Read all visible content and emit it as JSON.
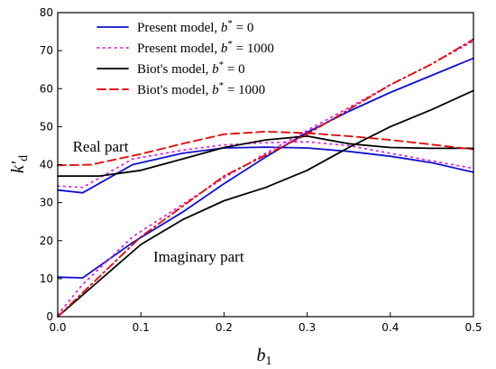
{
  "chart_data": {
    "type": "line",
    "xlabel": {
      "main": "b",
      "sub": "1"
    },
    "ylabel": {
      "main": "k′",
      "sub": "d"
    },
    "xlim": [
      0,
      0.5
    ],
    "ylim": [
      0,
      80
    ],
    "xticks": [
      0,
      0.1,
      0.2,
      0.3,
      0.4,
      0.5
    ],
    "xtick_labels": [
      "0.0",
      "0.1",
      "0.2",
      "0.3",
      "0.4",
      "0.5"
    ],
    "yticks": [
      0,
      10,
      20,
      30,
      40,
      50,
      60,
      70,
      80
    ],
    "ytick_labels": [
      "0",
      "10",
      "20",
      "30",
      "40",
      "50",
      "60",
      "70",
      "80"
    ],
    "legend_position": "top-left",
    "annotations": [
      {
        "text": "Real part",
        "x": 0.018,
        "y": 43.5
      },
      {
        "text": "Imaginary part",
        "x": 0.115,
        "y": 14.5
      }
    ],
    "series": [
      {
        "legend": {
          "prefix": "Present model, ",
          "var": "b",
          "sup": "*",
          "suffix": " = 0"
        },
        "color": "#1010d0",
        "dash": "",
        "width": 1.8,
        "part": "real",
        "x": [
          0,
          0.03,
          0.09,
          0.15,
          0.2,
          0.25,
          0.3,
          0.35,
          0.4,
          0.45,
          0.5
        ],
        "y": [
          33.3,
          32.6,
          40.0,
          43.0,
          44.4,
          44.6,
          44.4,
          43.5,
          42.2,
          40.5,
          38.0
        ]
      },
      {
        "legend": {
          "prefix": "Present model, ",
          "var": "b",
          "sup": "*",
          "suffix": " = 0"
        },
        "color": "#1010d0",
        "dash": "",
        "width": 1.8,
        "part": "imaginary",
        "x": [
          0,
          0.03,
          0.09,
          0.15,
          0.2,
          0.25,
          0.3,
          0.35,
          0.4,
          0.45,
          0.5
        ],
        "y": [
          10.4,
          10.2,
          19.5,
          27.5,
          35.0,
          42.0,
          48.5,
          54.0,
          59.0,
          63.5,
          68.0
        ]
      },
      {
        "legend": {
          "prefix": "Present model, ",
          "var": "b",
          "sup": "*",
          "suffix": " = 1000"
        },
        "color": "#e020e0",
        "dash": "1.5 5",
        "width": 1.8,
        "part": "real",
        "x": [
          0,
          0.03,
          0.09,
          0.15,
          0.2,
          0.25,
          0.3,
          0.35,
          0.4,
          0.45,
          0.5
        ],
        "y": [
          34.4,
          34.0,
          41.5,
          43.8,
          45.2,
          45.8,
          46.0,
          45.0,
          43.0,
          41.0,
          39.0
        ]
      },
      {
        "legend": {
          "prefix": "Present model, ",
          "var": "b",
          "sup": "*",
          "suffix": " = 1000"
        },
        "color": "#e020e0",
        "dash": "1.5 5",
        "width": 1.8,
        "part": "imaginary",
        "x": [
          0,
          0.03,
          0.09,
          0.15,
          0.2,
          0.25,
          0.3,
          0.35,
          0.4,
          0.45,
          0.5
        ],
        "y": [
          0.5,
          8.5,
          21.0,
          29.5,
          36.5,
          43.0,
          49.0,
          55.0,
          61.0,
          66.5,
          72.5
        ]
      },
      {
        "legend": {
          "prefix": "Biot's model, ",
          "var": "b",
          "sup": "*",
          "suffix": " = 0"
        },
        "color": "#000000",
        "dash": "",
        "width": 1.8,
        "part": "real",
        "x": [
          0,
          0.05,
          0.1,
          0.15,
          0.2,
          0.25,
          0.3,
          0.35,
          0.4,
          0.45,
          0.5
        ],
        "y": [
          37.0,
          37.0,
          38.5,
          41.5,
          44.5,
          46.5,
          47.5,
          45.5,
          44.5,
          44.3,
          44.3
        ]
      },
      {
        "legend": {
          "prefix": "Biot's model, ",
          "var": "b",
          "sup": "*",
          "suffix": " = 0"
        },
        "color": "#000000",
        "dash": "",
        "width": 1.8,
        "part": "imaginary",
        "x": [
          0,
          0.05,
          0.1,
          0.15,
          0.2,
          0.25,
          0.3,
          0.35,
          0.4,
          0.45,
          0.5
        ],
        "y": [
          0,
          9.5,
          19.0,
          25.5,
          30.5,
          34.0,
          38.5,
          44.5,
          50.0,
          54.5,
          59.5
        ]
      },
      {
        "legend": {
          "prefix": "Biot's model, ",
          "var": "b",
          "sup": "*",
          "suffix": " = 1000"
        },
        "color": "#e01010",
        "dash": "9 5",
        "width": 1.9,
        "part": "real",
        "x": [
          0,
          0.04,
          0.1,
          0.15,
          0.2,
          0.25,
          0.3,
          0.35,
          0.4,
          0.45,
          0.5
        ],
        "y": [
          39.8,
          40.0,
          42.8,
          45.5,
          48.0,
          48.7,
          48.3,
          47.5,
          46.5,
          45.3,
          44.0
        ]
      },
      {
        "legend": {
          "prefix": "Biot's model, ",
          "var": "b",
          "sup": "*",
          "suffix": " = 1000"
        },
        "color": "#e01010",
        "dash": "9 4 2 4",
        "width": 1.9,
        "part": "imaginary",
        "x": [
          0,
          0.05,
          0.1,
          0.15,
          0.2,
          0.25,
          0.3,
          0.35,
          0.4,
          0.45,
          0.5
        ],
        "y": [
          0,
          10.5,
          21.0,
          29.0,
          37.0,
          42.5,
          48.0,
          54.5,
          61.0,
          66.5,
          73.0
        ]
      }
    ]
  }
}
